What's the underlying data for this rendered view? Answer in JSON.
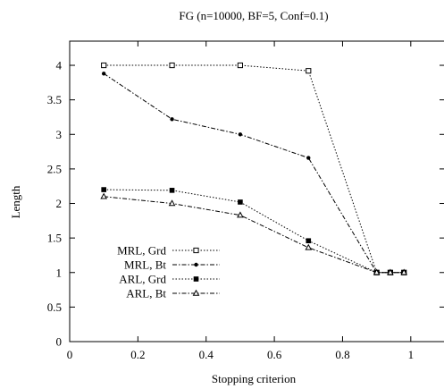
{
  "chart_data": {
    "type": "line",
    "title": "FG (n=10000, BF=5, Conf=0.1)",
    "xlabel": "Stopping criterion",
    "ylabel": "Length",
    "xlim": [
      0,
      1.1
    ],
    "ylim": [
      0,
      4.35
    ],
    "xticks": [
      0,
      0.2,
      0.4,
      0.6,
      0.8,
      1
    ],
    "xtick_labels": [
      "0",
      "0.2",
      "0.4",
      "0.6",
      "0.8",
      "1"
    ],
    "yticks": [
      0,
      0.5,
      1,
      1.5,
      2,
      2.5,
      3,
      3.5,
      4
    ],
    "ytick_labels": [
      "0",
      "0.5",
      "1",
      "1.5",
      "2",
      "2.5",
      "3",
      "3.5",
      "4"
    ],
    "grid": false,
    "legend_position": "left",
    "series": [
      {
        "name": "MRL, Grd",
        "marker": "open-square",
        "dash": "dotted",
        "x": [
          0.1,
          0.3,
          0.5,
          0.7,
          0.9,
          0.94,
          0.98
        ],
        "y": [
          4.0,
          4.0,
          4.0,
          3.92,
          1.0,
          1.0,
          1.0
        ]
      },
      {
        "name": "MRL, Bt",
        "marker": "filled-circle",
        "dash": "dashdot",
        "x": [
          0.1,
          0.3,
          0.5,
          0.7,
          0.9,
          0.94,
          0.98
        ],
        "y": [
          3.88,
          3.22,
          3.0,
          2.66,
          1.0,
          1.0,
          1.0
        ]
      },
      {
        "name": "ARL, Grd",
        "marker": "filled-square",
        "dash": "dotted",
        "x": [
          0.1,
          0.3,
          0.5,
          0.7,
          0.9,
          0.94,
          0.98
        ],
        "y": [
          2.2,
          2.19,
          2.02,
          1.46,
          1.0,
          1.0,
          1.0
        ]
      },
      {
        "name": "ARL, Bt",
        "marker": "triangle",
        "dash": "dashdot",
        "x": [
          0.1,
          0.3,
          0.5,
          0.7,
          0.9,
          0.94,
          0.98
        ],
        "y": [
          2.1,
          2.0,
          1.83,
          1.36,
          1.0,
          1.0,
          1.0
        ]
      }
    ]
  }
}
